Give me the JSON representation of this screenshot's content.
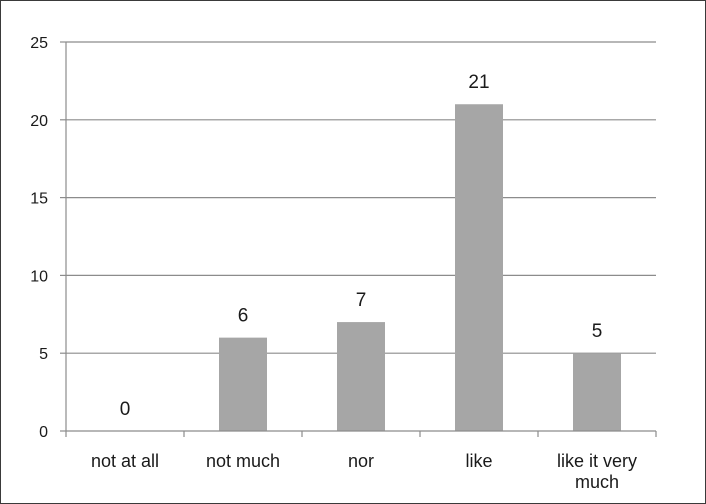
{
  "chart_data": {
    "type": "bar",
    "categories": [
      "not at all",
      "not much",
      "nor",
      "like",
      "like it very much"
    ],
    "category_label_lines": [
      [
        "not at all"
      ],
      [
        "not much"
      ],
      [
        "nor"
      ],
      [
        "like"
      ],
      [
        "like it very",
        "much"
      ]
    ],
    "values": [
      0,
      6,
      7,
      21,
      5
    ],
    "data_labels": [
      "0",
      "6",
      "7",
      "21",
      "5"
    ],
    "y_ticks": [
      0,
      5,
      10,
      15,
      20,
      25
    ],
    "ylim": [
      0,
      25
    ],
    "grid": true,
    "legend": "none",
    "title": "",
    "xlabel": "",
    "ylabel": "",
    "colors": {
      "bar": "#a6a6a6",
      "grid": "#8c8c8c",
      "axis": "#8c8c8c",
      "text": "#1a1a1a",
      "border": "#3a3a3a"
    }
  }
}
